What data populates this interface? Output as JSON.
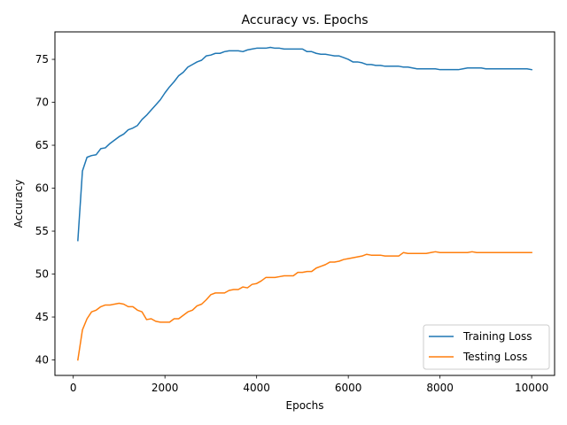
{
  "chart_data": {
    "type": "line",
    "title": "Accuracy vs. Epochs",
    "xlabel": "Epochs",
    "ylabel": "Accuracy",
    "xlim": [
      -400,
      10500
    ],
    "ylim": [
      38.2,
      78.2
    ],
    "xticks": [
      0,
      2000,
      4000,
      6000,
      8000,
      10000
    ],
    "yticks": [
      40,
      45,
      50,
      55,
      60,
      65,
      70,
      75
    ],
    "grid": false,
    "legend_position": "lower-right",
    "series": [
      {
        "name": "Training Loss",
        "color": "#1f77b4",
        "x": [
          100,
          200,
          300,
          400,
          500,
          600,
          700,
          800,
          900,
          1000,
          1100,
          1200,
          1300,
          1400,
          1500,
          1600,
          1700,
          1800,
          1900,
          2000,
          2100,
          2200,
          2300,
          2400,
          2500,
          2600,
          2700,
          2800,
          2900,
          3000,
          3100,
          3200,
          3300,
          3400,
          3500,
          3600,
          3700,
          3800,
          3900,
          4000,
          4100,
          4200,
          4300,
          4400,
          4500,
          4600,
          4700,
          4800,
          4900,
          5000,
          5100,
          5200,
          5300,
          5400,
          5500,
          5600,
          5700,
          5800,
          5900,
          6000,
          6100,
          6200,
          6300,
          6400,
          6500,
          6600,
          6700,
          6800,
          6900,
          7000,
          7100,
          7200,
          7300,
          7400,
          7500,
          7600,
          7700,
          7800,
          7900,
          8000,
          8100,
          8200,
          8300,
          8400,
          8500,
          8600,
          8700,
          8800,
          8900,
          9000,
          9100,
          9200,
          9300,
          9400,
          9500,
          9600,
          9700,
          9800,
          9900,
          10000
        ],
        "values": [
          53.9,
          62.0,
          63.6,
          63.8,
          63.9,
          64.6,
          64.7,
          65.2,
          65.6,
          66.0,
          66.3,
          66.8,
          67.0,
          67.3,
          68.0,
          68.5,
          69.1,
          69.7,
          70.3,
          71.1,
          71.8,
          72.4,
          73.1,
          73.5,
          74.1,
          74.4,
          74.7,
          74.9,
          75.4,
          75.5,
          75.7,
          75.7,
          75.9,
          76.0,
          76.0,
          76.0,
          75.9,
          76.1,
          76.2,
          76.3,
          76.3,
          76.3,
          76.4,
          76.3,
          76.3,
          76.2,
          76.2,
          76.2,
          76.2,
          76.2,
          75.9,
          75.9,
          75.7,
          75.6,
          75.6,
          75.5,
          75.4,
          75.4,
          75.2,
          75.0,
          74.7,
          74.7,
          74.6,
          74.4,
          74.4,
          74.3,
          74.3,
          74.2,
          74.2,
          74.2,
          74.2,
          74.1,
          74.1,
          74.0,
          73.9,
          73.9,
          73.9,
          73.9,
          73.9,
          73.8,
          73.8,
          73.8,
          73.8,
          73.8,
          73.9,
          74.0,
          74.0,
          74.0,
          74.0,
          73.9,
          73.9,
          73.9,
          73.9,
          73.9,
          73.9,
          73.9,
          73.9,
          73.9,
          73.9,
          73.8
        ]
      },
      {
        "name": "Testing Loss",
        "color": "#ff7f0e",
        "x": [
          100,
          200,
          300,
          400,
          500,
          600,
          700,
          800,
          900,
          1000,
          1100,
          1200,
          1300,
          1400,
          1500,
          1600,
          1700,
          1800,
          1900,
          2000,
          2100,
          2200,
          2300,
          2400,
          2500,
          2600,
          2700,
          2800,
          2900,
          3000,
          3100,
          3200,
          3300,
          3400,
          3500,
          3600,
          3700,
          3800,
          3900,
          4000,
          4100,
          4200,
          4300,
          4400,
          4500,
          4600,
          4700,
          4800,
          4900,
          5000,
          5100,
          5200,
          5300,
          5400,
          5500,
          5600,
          5700,
          5800,
          5900,
          6000,
          6100,
          6200,
          6300,
          6400,
          6500,
          6600,
          6700,
          6800,
          6900,
          7000,
          7100,
          7200,
          7300,
          7400,
          7500,
          7600,
          7700,
          7800,
          7900,
          8000,
          8100,
          8200,
          8300,
          8400,
          8500,
          8600,
          8700,
          8800,
          8900,
          9000,
          9100,
          9200,
          9300,
          9400,
          9500,
          9600,
          9700,
          9800,
          9900,
          10000
        ],
        "values": [
          40.0,
          43.5,
          44.8,
          45.6,
          45.8,
          46.2,
          46.4,
          46.4,
          46.5,
          46.6,
          46.5,
          46.2,
          46.2,
          45.8,
          45.6,
          44.7,
          44.8,
          44.5,
          44.4,
          44.4,
          44.4,
          44.8,
          44.8,
          45.2,
          45.6,
          45.8,
          46.3,
          46.5,
          47.0,
          47.6,
          47.8,
          47.8,
          47.8,
          48.1,
          48.2,
          48.2,
          48.5,
          48.4,
          48.8,
          48.9,
          49.2,
          49.6,
          49.6,
          49.6,
          49.7,
          49.8,
          49.8,
          49.8,
          50.2,
          50.2,
          50.3,
          50.3,
          50.7,
          50.9,
          51.1,
          51.4,
          51.4,
          51.5,
          51.7,
          51.8,
          51.9,
          52.0,
          52.1,
          52.3,
          52.2,
          52.2,
          52.2,
          52.1,
          52.1,
          52.1,
          52.1,
          52.5,
          52.4,
          52.4,
          52.4,
          52.4,
          52.4,
          52.5,
          52.6,
          52.5,
          52.5,
          52.5,
          52.5,
          52.5,
          52.5,
          52.5,
          52.6,
          52.5,
          52.5,
          52.5,
          52.5,
          52.5,
          52.5,
          52.5,
          52.5,
          52.5,
          52.5,
          52.5,
          52.5,
          52.5
        ]
      }
    ]
  }
}
